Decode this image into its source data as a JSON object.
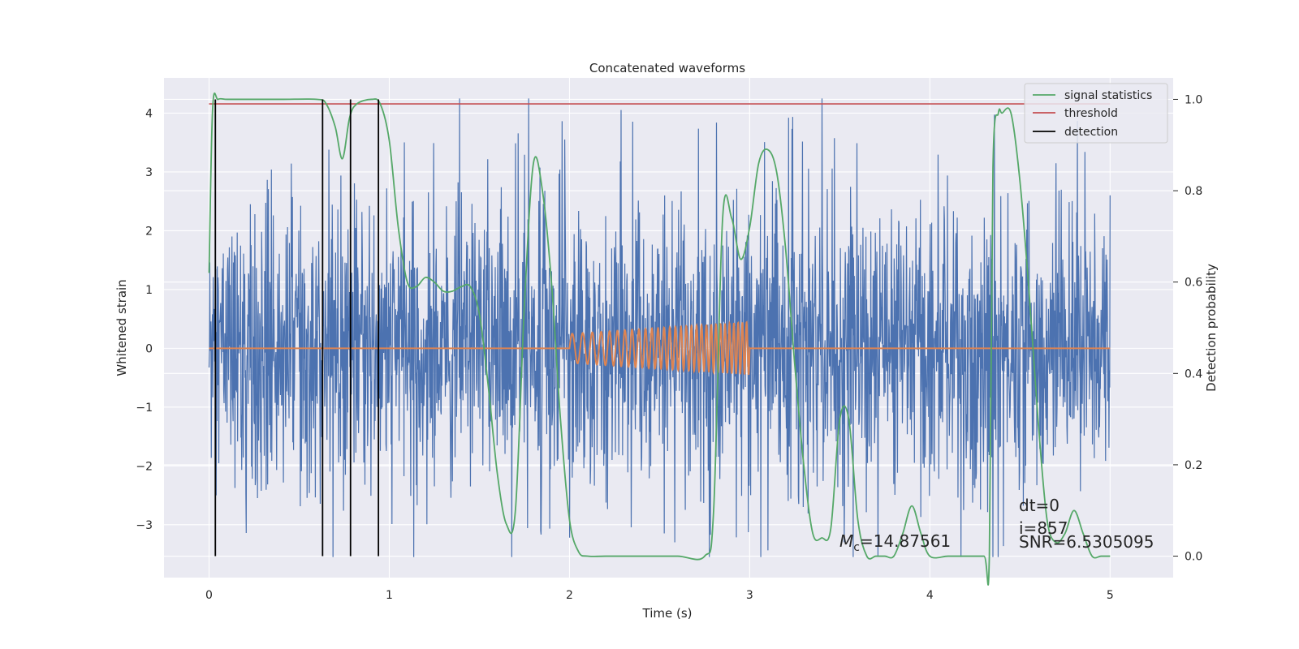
{
  "chart_data": {
    "type": "line",
    "title": "Concatenated waveforms",
    "xlabel": "Time (s)",
    "ylabel": "Whitened strain",
    "y2label": "Detection probability",
    "xlim": [
      -0.25,
      5.35
    ],
    "ylim": [
      -3.9,
      4.6
    ],
    "y2lim": [
      -0.047,
      1.047
    ],
    "xticks": [
      0,
      1,
      2,
      3,
      4,
      5
    ],
    "xtick_labels": [
      "0",
      "1",
      "2",
      "3",
      "4",
      "5"
    ],
    "yticks": [
      -3,
      -2,
      -1,
      0,
      1,
      2,
      3,
      4
    ],
    "ytick_labels": [
      "−3",
      "−2",
      "−1",
      "0",
      "1",
      "2",
      "3",
      "4"
    ],
    "y2ticks": [
      0.0,
      0.2,
      0.4,
      0.6,
      0.8,
      1.0
    ],
    "y2tick_labels": [
      "0.0",
      "0.2",
      "0.4",
      "0.6",
      "0.8",
      "1.0"
    ],
    "grid": true,
    "legend_position": "top-right",
    "legend": [
      "signal statistics",
      "threshold",
      "detection"
    ],
    "series": {
      "strain": {
        "color": "#4c72b0",
        "x_range": [
          0,
          5
        ],
        "amplitude_range": [
          -3.55,
          4.25
        ]
      },
      "template": {
        "color": "#dd8452",
        "x_range": [
          0,
          5
        ],
        "chirp_window": [
          2.0,
          3.0
        ],
        "peak_amplitude": 0.45
      },
      "signal_statistics": {
        "name": "signal statistics",
        "color": "#55a868",
        "axis": "right",
        "x": [
          0.0,
          0.02,
          0.05,
          0.1,
          0.2,
          0.4,
          0.6,
          0.65,
          0.7,
          0.74,
          0.78,
          0.82,
          0.9,
          0.95,
          1.0,
          1.05,
          1.1,
          1.15,
          1.2,
          1.25,
          1.3,
          1.35,
          1.4,
          1.45,
          1.5,
          1.55,
          1.6,
          1.65,
          1.7,
          1.75,
          1.8,
          1.85,
          1.9,
          1.95,
          2.0,
          2.05,
          2.1,
          2.2,
          2.4,
          2.6,
          2.75,
          2.8,
          2.85,
          2.9,
          2.95,
          3.0,
          3.05,
          3.1,
          3.15,
          3.2,
          3.25,
          3.3,
          3.35,
          3.4,
          3.45,
          3.5,
          3.55,
          3.6,
          3.65,
          3.7,
          3.75,
          3.8,
          3.85,
          3.9,
          3.95,
          4.0,
          4.1,
          4.2,
          4.3,
          4.33,
          4.35,
          4.38,
          4.4,
          4.45,
          4.5,
          4.55,
          4.6,
          4.65,
          4.7,
          4.75,
          4.8,
          4.85,
          4.9,
          4.95,
          5.0
        ],
        "y": [
          0.62,
          0.98,
          1.0,
          1.0,
          1.0,
          1.0,
          1.0,
          0.99,
          0.94,
          0.87,
          0.96,
          0.99,
          1.0,
          0.99,
          0.91,
          0.72,
          0.6,
          0.59,
          0.61,
          0.6,
          0.58,
          0.58,
          0.59,
          0.59,
          0.53,
          0.37,
          0.18,
          0.07,
          0.1,
          0.55,
          0.86,
          0.8,
          0.6,
          0.3,
          0.08,
          0.01,
          0.0,
          0.0,
          0.0,
          0.0,
          0.0,
          0.1,
          0.74,
          0.74,
          0.65,
          0.72,
          0.86,
          0.89,
          0.84,
          0.67,
          0.42,
          0.2,
          0.05,
          0.04,
          0.06,
          0.3,
          0.3,
          0.08,
          0.0,
          0.0,
          0.0,
          0.0,
          0.05,
          0.11,
          0.05,
          0.0,
          0.0,
          0.0,
          0.0,
          0.0,
          0.85,
          0.97,
          0.97,
          0.97,
          0.82,
          0.58,
          0.3,
          0.08,
          0.03,
          0.05,
          0.1,
          0.05,
          0.0,
          0.0,
          0.0
        ]
      },
      "threshold": {
        "name": "threshold",
        "color": "#c44e52",
        "axis": "right",
        "x": [
          0,
          5
        ],
        "y": [
          0.99,
          0.99
        ]
      },
      "detection": {
        "name": "detection",
        "color": "#000000",
        "x": [
          0.035,
          0.63,
          0.785,
          0.94
        ]
      }
    },
    "annotations": {
      "mc": "M",
      "mc_sub": "c",
      "mc_value": "=14.87561",
      "dt": "dt=0",
      "i": "i=857",
      "snr": "SNR=6.5305095"
    }
  }
}
